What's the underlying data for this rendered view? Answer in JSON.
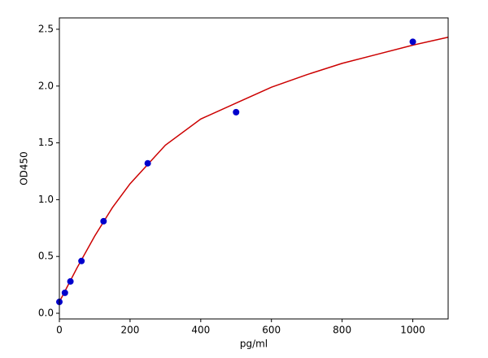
{
  "chart_data": {
    "type": "scatter",
    "x_label": "pg/ml",
    "y_label": "OD450",
    "xlim": [
      0,
      1100
    ],
    "ylim": [
      -0.05,
      2.6
    ],
    "xticks": [
      0,
      200,
      400,
      600,
      800,
      1000
    ],
    "yticks": [
      {
        "value": 0,
        "label": "0.0"
      },
      0.5,
      {
        "value": 1,
        "label": "1.0"
      },
      1.5,
      {
        "value": 2,
        "label": "2.0"
      },
      2.5
    ],
    "series": [
      {
        "style": "line",
        "color": "#cc0000",
        "x": [
          0,
          25,
          50,
          100,
          150,
          200,
          300,
          400,
          500,
          600,
          700,
          800,
          900,
          1000,
          1100
        ],
        "values": [
          0.1,
          0.25,
          0.4,
          0.68,
          0.93,
          1.14,
          1.48,
          1.71,
          1.85,
          1.99,
          2.1,
          2.2,
          2.28,
          2.36,
          2.43
        ]
      },
      {
        "style": "markers",
        "color": "#0000cc",
        "x": [
          0,
          15.6,
          31.25,
          62.5,
          125,
          250,
          500,
          1000
        ],
        "values": [
          0.1,
          0.18,
          0.28,
          0.46,
          0.81,
          1.32,
          1.77,
          2.39
        ]
      }
    ]
  }
}
